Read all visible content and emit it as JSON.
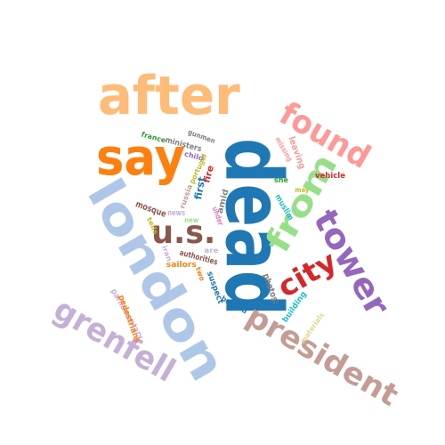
{
  "word_cloud": {
    "words": [
      {
        "text": "dead",
        "color": "#1f77b4"
      },
      {
        "text": "london",
        "color": "#aec7e8"
      },
      {
        "text": "after",
        "color": "#ffbb78"
      },
      {
        "text": "say",
        "color": "#ff7f0e"
      },
      {
        "text": "found",
        "color": "#ff9896"
      },
      {
        "text": "from",
        "color": "#98df8a"
      },
      {
        "text": "tower",
        "color": "#9467bd"
      },
      {
        "text": "city",
        "color": "#d62728"
      },
      {
        "text": "u.s.",
        "color": "#8c564b"
      },
      {
        "text": "president",
        "color": "#c49c94"
      },
      {
        "text": "grenfell",
        "color": "#c5b0d5"
      },
      {
        "text": "france",
        "color": "#2ca02c"
      },
      {
        "text": "gunmen",
        "color": "#7f7f7f"
      },
      {
        "text": "ministers",
        "color": "#7f7f7f"
      },
      {
        "text": "child",
        "color": "#9467bd"
      },
      {
        "text": "portugal",
        "color": "#bcbd22"
      },
      {
        "text": "fire",
        "color": "#d62728"
      },
      {
        "text": "first",
        "color": "#1f77b4"
      },
      {
        "text": "russia",
        "color": "#c49c94"
      },
      {
        "text": "news",
        "color": "#c5b0d5"
      },
      {
        "text": "amid",
        "color": "#7f7f7f"
      },
      {
        "text": "vehicle",
        "color": "#d62728"
      },
      {
        "text": "she",
        "color": "#2ca02c"
      },
      {
        "text": "leaving",
        "color": "#ff9896"
      },
      {
        "text": "missing",
        "color": "#ff9896"
      },
      {
        "text": "muslim",
        "color": "#17becf"
      },
      {
        "text": "may",
        "color": "#bcbd22"
      },
      {
        "text": "mosque",
        "color": "#8c564b"
      },
      {
        "text": "new",
        "color": "#98df8a"
      },
      {
        "text": "tells",
        "color": "#bcbd22"
      },
      {
        "text": "under",
        "color": "#e377c2"
      },
      {
        "text": "authorities",
        "color": "#8c564b"
      },
      {
        "text": "are",
        "color": "#c5b0d5"
      },
      {
        "text": "iran",
        "color": "#c5b0d5"
      },
      {
        "text": "sailors",
        "color": "#ff7f0e"
      },
      {
        "text": "two",
        "color": "#ff7f0e"
      },
      {
        "text": "suspect",
        "color": "#1f77b4"
      },
      {
        "text": "banned",
        "color": "#1f77b4"
      },
      {
        "text": "photos:",
        "color": "#7f7f7f"
      },
      {
        "text": "building",
        "color": "#17becf"
      },
      {
        "text": "materials",
        "color": "#dbdb8d"
      },
      {
        "text": "parliamentary",
        "color": "#c5b0d5"
      },
      {
        "text": "pedestrians",
        "color": "#ff7f0e"
      }
    ]
  }
}
